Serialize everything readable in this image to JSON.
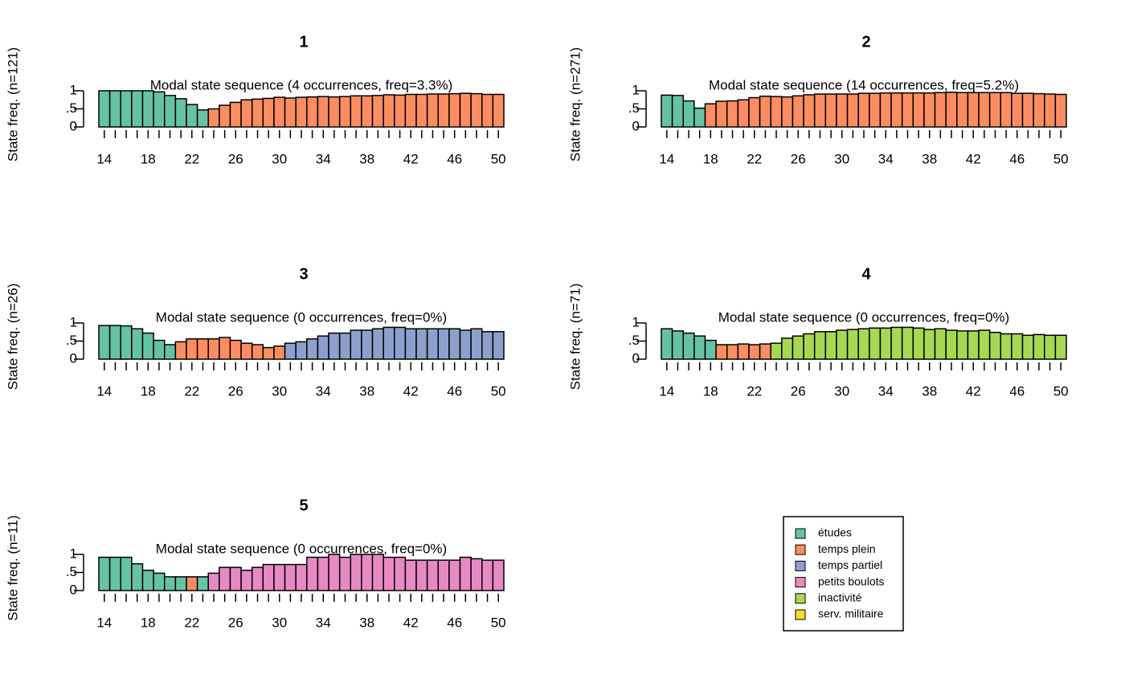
{
  "chart_data": [
    {
      "type": "bar",
      "title": "1",
      "subtitle": "Modal state sequence (4 occurrences, freq=3.3%)",
      "y_label": "State freq. (n=121)",
      "categories": [
        14,
        null,
        null,
        null,
        18,
        null,
        null,
        null,
        22,
        null,
        null,
        null,
        26,
        null,
        null,
        null,
        30,
        null,
        null,
        null,
        34,
        null,
        null,
        null,
        38,
        null,
        null,
        null,
        42,
        null,
        null,
        null,
        46,
        null,
        null,
        null,
        50
      ],
      "values": [
        1,
        1,
        1,
        1,
        1,
        0.97,
        0.87,
        0.78,
        0.62,
        0.47,
        0.5,
        0.6,
        0.68,
        0.75,
        0.77,
        0.79,
        0.82,
        0.8,
        0.82,
        0.83,
        0.84,
        0.83,
        0.84,
        0.86,
        0.86,
        0.87,
        0.89,
        0.88,
        0.9,
        0.9,
        0.91,
        0.91,
        0.92,
        0.93,
        0.92,
        0.9,
        0.9
      ],
      "colors": [
        "#66C2A5",
        "#66C2A5",
        "#66C2A5",
        "#66C2A5",
        "#66C2A5",
        "#66C2A5",
        "#66C2A5",
        "#66C2A5",
        "#66C2A5",
        "#66C2A5",
        "#FC8D62",
        "#FC8D62",
        "#FC8D62",
        "#FC8D62",
        "#FC8D62",
        "#FC8D62",
        "#FC8D62",
        "#FC8D62",
        "#FC8D62",
        "#FC8D62",
        "#FC8D62",
        "#FC8D62",
        "#FC8D62",
        "#FC8D62",
        "#FC8D62",
        "#FC8D62",
        "#FC8D62",
        "#FC8D62",
        "#FC8D62",
        "#FC8D62",
        "#FC8D62",
        "#FC8D62",
        "#FC8D62",
        "#FC8D62",
        "#FC8D62",
        "#FC8D62",
        "#FC8D62"
      ],
      "ylim": [
        0,
        1
      ],
      "yticks": [
        0,
        {
          "value": 0.5,
          "label": ".5"
        },
        1
      ]
    },
    {
      "type": "bar",
      "title": "2",
      "subtitle": "Modal state sequence (14 occurrences, freq=5.2%)",
      "y_label": "State freq. (n=271)",
      "categories": [
        14,
        null,
        null,
        null,
        18,
        null,
        null,
        null,
        22,
        null,
        null,
        null,
        26,
        null,
        null,
        null,
        30,
        null,
        null,
        null,
        34,
        null,
        null,
        null,
        38,
        null,
        null,
        null,
        42,
        null,
        null,
        null,
        46,
        null,
        null,
        null,
        50
      ],
      "values": [
        0.88,
        0.87,
        0.72,
        0.52,
        0.64,
        0.71,
        0.72,
        0.75,
        0.81,
        0.85,
        0.84,
        0.83,
        0.86,
        0.89,
        0.91,
        0.91,
        0.91,
        0.91,
        0.93,
        0.93,
        0.94,
        0.94,
        0.94,
        0.94,
        0.94,
        0.95,
        0.96,
        0.95,
        0.95,
        0.95,
        0.95,
        0.95,
        0.93,
        0.93,
        0.92,
        0.91,
        0.9
      ],
      "colors": [
        "#66C2A5",
        "#66C2A5",
        "#66C2A5",
        "#66C2A5",
        "#FC8D62",
        "#FC8D62",
        "#FC8D62",
        "#FC8D62",
        "#FC8D62",
        "#FC8D62",
        "#FC8D62",
        "#FC8D62",
        "#FC8D62",
        "#FC8D62",
        "#FC8D62",
        "#FC8D62",
        "#FC8D62",
        "#FC8D62",
        "#FC8D62",
        "#FC8D62",
        "#FC8D62",
        "#FC8D62",
        "#FC8D62",
        "#FC8D62",
        "#FC8D62",
        "#FC8D62",
        "#FC8D62",
        "#FC8D62",
        "#FC8D62",
        "#FC8D62",
        "#FC8D62",
        "#FC8D62",
        "#FC8D62",
        "#FC8D62",
        "#FC8D62",
        "#FC8D62",
        "#FC8D62"
      ],
      "ylim": [
        0,
        1
      ],
      "yticks": [
        0,
        {
          "value": 0.5,
          "label": ".5"
        },
        1
      ]
    },
    {
      "type": "bar",
      "title": "3",
      "subtitle": "Modal state sequence (0 occurrences, freq=0%)",
      "y_label": "State freq. (n=26)",
      "categories": [
        14,
        null,
        null,
        null,
        18,
        null,
        null,
        null,
        22,
        null,
        null,
        null,
        26,
        null,
        null,
        null,
        30,
        null,
        null,
        null,
        34,
        null,
        null,
        null,
        38,
        null,
        null,
        null,
        42,
        null,
        null,
        null,
        46,
        null,
        null,
        null,
        50
      ],
      "values": [
        0.93,
        0.93,
        0.92,
        0.84,
        0.72,
        0.52,
        0.4,
        0.48,
        0.56,
        0.56,
        0.56,
        0.6,
        0.52,
        0.44,
        0.4,
        0.32,
        0.36,
        0.44,
        0.48,
        0.56,
        0.64,
        0.72,
        0.72,
        0.8,
        0.8,
        0.84,
        0.88,
        0.88,
        0.84,
        0.84,
        0.84,
        0.84,
        0.84,
        0.8,
        0.84,
        0.76,
        0.76
      ],
      "colors": [
        "#66C2A5",
        "#66C2A5",
        "#66C2A5",
        "#66C2A5",
        "#66C2A5",
        "#66C2A5",
        "#66C2A5",
        "#FC8D62",
        "#FC8D62",
        "#FC8D62",
        "#FC8D62",
        "#FC8D62",
        "#FC8D62",
        "#FC8D62",
        "#FC8D62",
        "#FC8D62",
        "#FC8D62",
        "#8DA0CB",
        "#8DA0CB",
        "#8DA0CB",
        "#8DA0CB",
        "#8DA0CB",
        "#8DA0CB",
        "#8DA0CB",
        "#8DA0CB",
        "#8DA0CB",
        "#8DA0CB",
        "#8DA0CB",
        "#8DA0CB",
        "#8DA0CB",
        "#8DA0CB",
        "#8DA0CB",
        "#8DA0CB",
        "#8DA0CB",
        "#8DA0CB",
        "#8DA0CB",
        "#8DA0CB"
      ],
      "ylim": [
        0,
        1
      ],
      "yticks": [
        0,
        {
          "value": 0.5,
          "label": ".5"
        },
        1
      ]
    },
    {
      "type": "bar",
      "title": "4",
      "subtitle": "Modal state sequence (0 occurrences, freq=0%)",
      "y_label": "State freq. (n=71)",
      "categories": [
        14,
        null,
        null,
        null,
        18,
        null,
        null,
        null,
        22,
        null,
        null,
        null,
        26,
        null,
        null,
        null,
        30,
        null,
        null,
        null,
        34,
        null,
        null,
        null,
        38,
        null,
        null,
        null,
        42,
        null,
        null,
        null,
        46,
        null,
        null,
        null,
        50
      ],
      "values": [
        0.84,
        0.78,
        0.72,
        0.64,
        0.52,
        0.4,
        0.4,
        0.42,
        0.4,
        0.42,
        0.44,
        0.58,
        0.64,
        0.7,
        0.76,
        0.76,
        0.8,
        0.82,
        0.84,
        0.86,
        0.86,
        0.88,
        0.88,
        0.86,
        0.82,
        0.84,
        0.8,
        0.78,
        0.78,
        0.8,
        0.74,
        0.7,
        0.7,
        0.66,
        0.68,
        0.66,
        0.66
      ],
      "colors": [
        "#66C2A5",
        "#66C2A5",
        "#66C2A5",
        "#66C2A5",
        "#66C2A5",
        "#FC8D62",
        "#FC8D62",
        "#FC8D62",
        "#FC8D62",
        "#FC8D62",
        "#A6D854",
        "#A6D854",
        "#A6D854",
        "#A6D854",
        "#A6D854",
        "#A6D854",
        "#A6D854",
        "#A6D854",
        "#A6D854",
        "#A6D854",
        "#A6D854",
        "#A6D854",
        "#A6D854",
        "#A6D854",
        "#A6D854",
        "#A6D854",
        "#A6D854",
        "#A6D854",
        "#A6D854",
        "#A6D854",
        "#A6D854",
        "#A6D854",
        "#A6D854",
        "#A6D854",
        "#A6D854",
        "#A6D854",
        "#A6D854"
      ],
      "ylim": [
        0,
        1
      ],
      "yticks": [
        0,
        {
          "value": 0.5,
          "label": ".5"
        },
        1
      ]
    },
    {
      "type": "bar",
      "title": "5",
      "subtitle": "Modal state sequence (0 occurrences, freq=0%)",
      "y_label": "State freq. (n=11)",
      "categories": [
        14,
        null,
        null,
        null,
        18,
        null,
        null,
        null,
        22,
        null,
        null,
        null,
        26,
        null,
        null,
        null,
        30,
        null,
        null,
        null,
        34,
        null,
        null,
        null,
        38,
        null,
        null,
        null,
        42,
        null,
        null,
        null,
        46,
        null,
        null,
        null,
        50
      ],
      "values": [
        0.92,
        0.92,
        0.92,
        0.74,
        0.56,
        0.48,
        0.38,
        0.38,
        0.38,
        0.38,
        0.48,
        0.64,
        0.64,
        0.56,
        0.64,
        0.72,
        0.72,
        0.72,
        0.72,
        0.92,
        0.92,
        1,
        0.92,
        1,
        1,
        1,
        0.92,
        0.92,
        0.84,
        0.84,
        0.84,
        0.84,
        0.84,
        0.92,
        0.88,
        0.84,
        0.84
      ],
      "colors": [
        "#66C2A5",
        "#66C2A5",
        "#66C2A5",
        "#66C2A5",
        "#66C2A5",
        "#66C2A5",
        "#66C2A5",
        "#66C2A5",
        "#FC8D62",
        "#66C2A5",
        "#E78AC3",
        "#E78AC3",
        "#E78AC3",
        "#E78AC3",
        "#E78AC3",
        "#E78AC3",
        "#E78AC3",
        "#E78AC3",
        "#E78AC3",
        "#E78AC3",
        "#E78AC3",
        "#E78AC3",
        "#E78AC3",
        "#E78AC3",
        "#E78AC3",
        "#E78AC3",
        "#E78AC3",
        "#E78AC3",
        "#E78AC3",
        "#E78AC3",
        "#E78AC3",
        "#E78AC3",
        "#E78AC3",
        "#E78AC3",
        "#E78AC3",
        "#E78AC3",
        "#E78AC3"
      ],
      "ylim": [
        0,
        1
      ],
      "yticks": [
        0,
        {
          "value": 0.5,
          "label": ".5"
        },
        1
      ]
    }
  ],
  "legend": {
    "items": [
      {
        "name": "études",
        "color": "#66C2A5"
      },
      {
        "name": "temps plein",
        "color": "#FC8D62"
      },
      {
        "name": "temps partiel",
        "color": "#8DA0CB"
      },
      {
        "name": "petits boulots",
        "color": "#E78AC3"
      },
      {
        "name": "inactivité",
        "color": "#A6D854"
      },
      {
        "name": "serv. militaire",
        "color": "#FFD92F"
      }
    ]
  }
}
